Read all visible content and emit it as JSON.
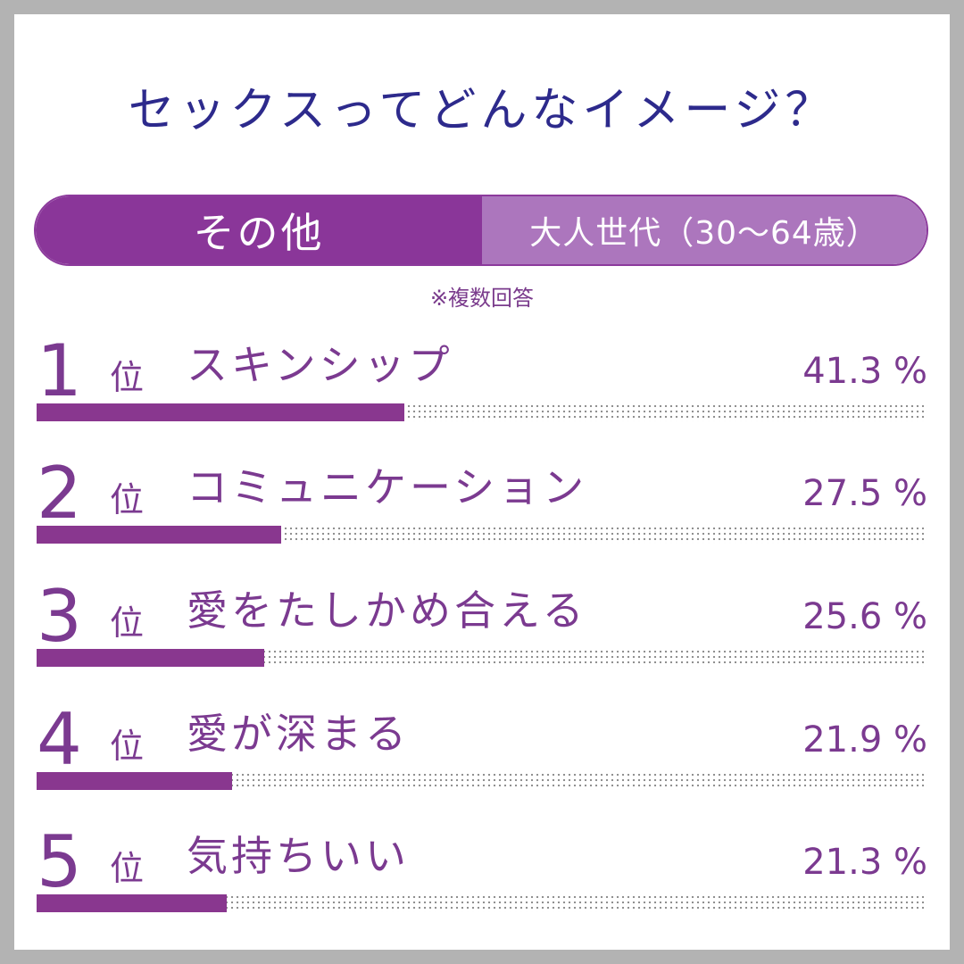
{
  "title": "セックスってどんなイメージ？",
  "segments": {
    "active": "その他",
    "inactive": "大人世代（30～64歳）"
  },
  "note": "※複数回答",
  "rank_suffix": "位",
  "value_unit": "%",
  "colors": {
    "accent": "#89378f",
    "title": "#2d2a8c",
    "segment_inactive": "#ac76bd"
  },
  "chart_data": {
    "type": "bar",
    "categories": [
      "スキンシップ",
      "コミュニケーション",
      "愛をたしかめ合える",
      "愛が深まる",
      "気持ちいい"
    ],
    "ranks": [
      "1",
      "2",
      "3",
      "4",
      "5"
    ],
    "values": [
      41.3,
      27.5,
      25.6,
      21.9,
      21.3
    ],
    "value_labels": [
      "41.3",
      "27.5",
      "25.6",
      "21.9",
      "21.3"
    ],
    "unit": "%",
    "xlim": [
      0,
      100
    ]
  }
}
